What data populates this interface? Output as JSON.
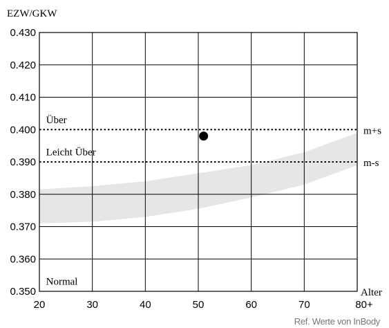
{
  "chart_data": {
    "type": "scatter",
    "ylabel": "EZW/GKW",
    "xlabel": "Alter",
    "xlim": [
      20,
      80
    ],
    "ylim": [
      0.35,
      0.43
    ],
    "x_ticks": [
      20,
      30,
      40,
      50,
      60,
      70,
      80
    ],
    "x_tick_labels": [
      "20",
      "30",
      "40",
      "50",
      "60",
      "70",
      "80+"
    ],
    "y_ticks": [
      0.35,
      0.36,
      0.37,
      0.38,
      0.39,
      0.4,
      0.41,
      0.42,
      0.43
    ],
    "y_tick_labels": [
      "0.350",
      "0.360",
      "0.370",
      "0.380",
      "0.390",
      "0.400",
      "0.410",
      "0.420",
      "0.430"
    ],
    "grid": true,
    "points": [
      {
        "x": 51,
        "y": 0.398
      }
    ],
    "reference_lines": [
      {
        "y": 0.4,
        "style": "dotted",
        "label": "m+s"
      },
      {
        "y": 0.39,
        "style": "dotted",
        "label": "m-s"
      }
    ],
    "reference_band": {
      "x": [
        20,
        30,
        40,
        50,
        60,
        70,
        80
      ],
      "lower": [
        0.371,
        0.3715,
        0.373,
        0.3755,
        0.379,
        0.383,
        0.389
      ],
      "upper": [
        0.3815,
        0.3825,
        0.384,
        0.3865,
        0.389,
        0.393,
        0.399
      ],
      "color": "#e6e6e6"
    },
    "zone_labels": [
      {
        "text": "Über",
        "x": 21,
        "y": 0.402
      },
      {
        "text": "Leicht Über",
        "x": 21,
        "y": 0.392
      },
      {
        "text": "Normal",
        "x": 21,
        "y": 0.352
      }
    ],
    "footnote": "Ref. Werte von InBody"
  }
}
